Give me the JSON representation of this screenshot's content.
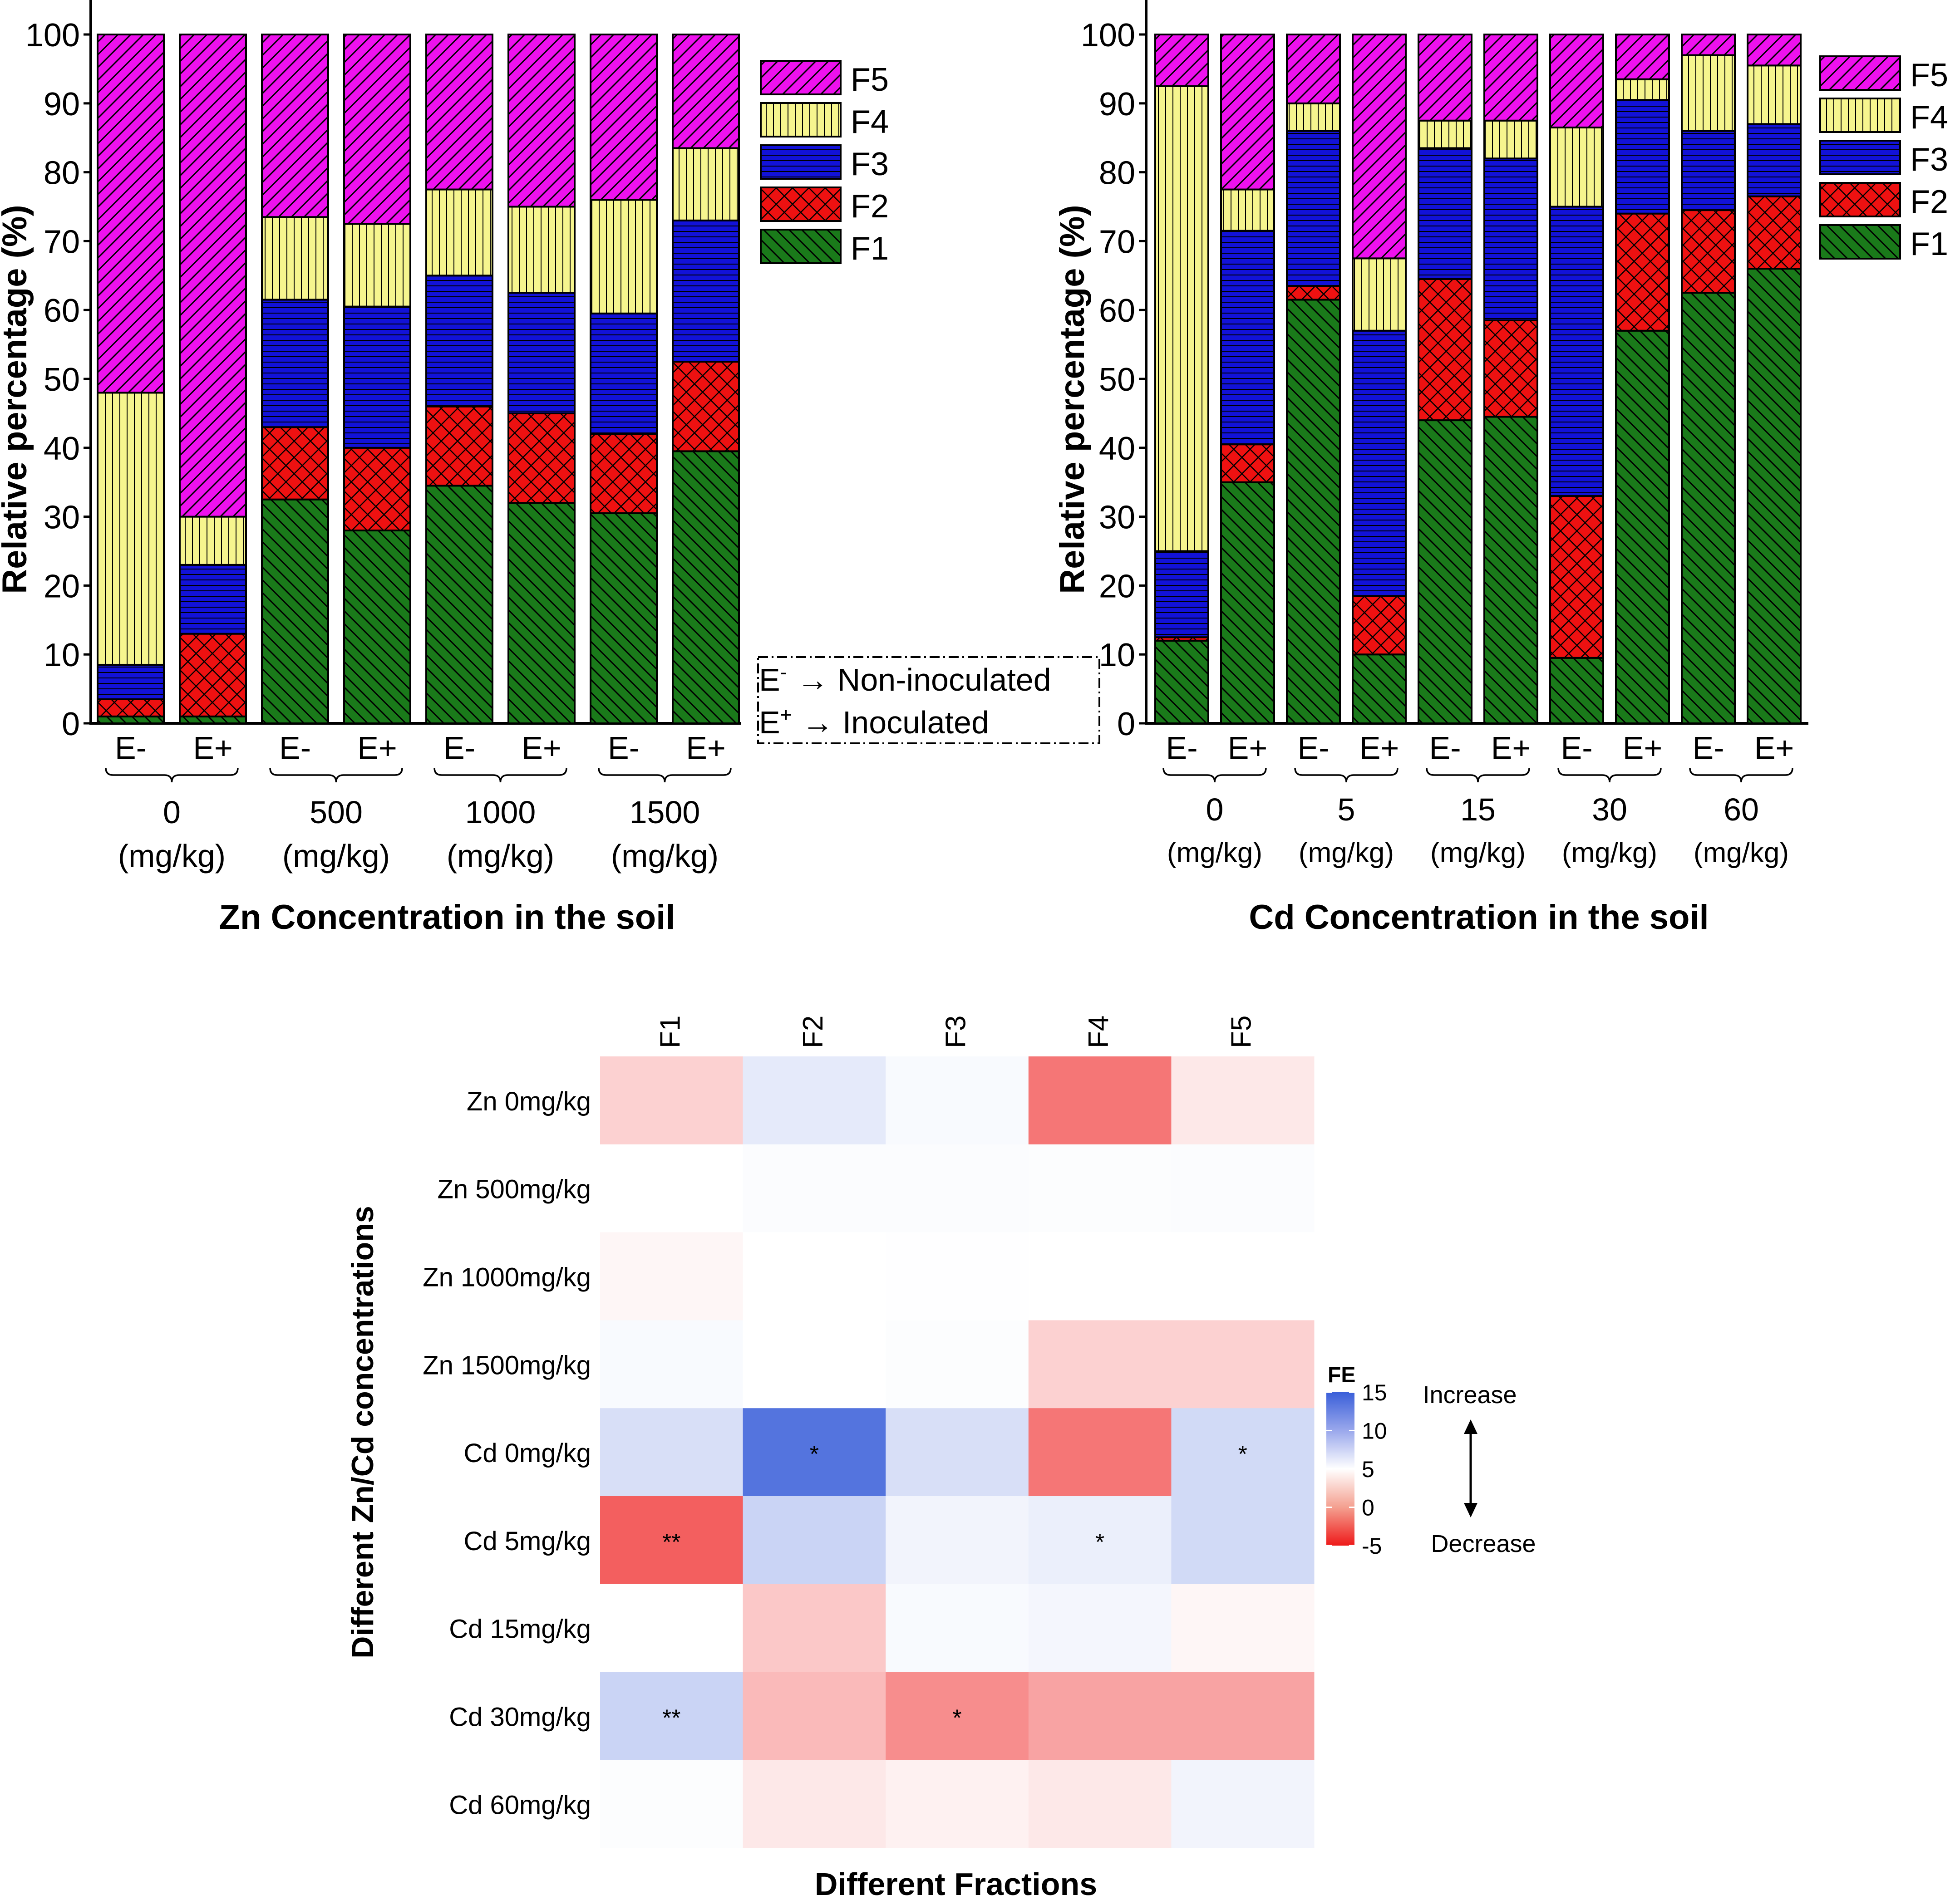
{
  "chart_data": [
    {
      "type": "bar",
      "stacked": true,
      "title": "",
      "xlabel": "Zn Concentration in the soil",
      "ylabel": "Relative percentage (%)",
      "ylim": [
        0,
        100
      ],
      "yticks": [
        0,
        10,
        20,
        30,
        40,
        50,
        60,
        70,
        80,
        90,
        100
      ],
      "bar_labels": [
        "E-",
        "E+",
        "E-",
        "E+",
        "E-",
        "E+",
        "E-",
        "E+"
      ],
      "groups": [
        {
          "value": "0",
          "unit": "(mg/kg)"
        },
        {
          "value": "500",
          "unit": "(mg/kg)"
        },
        {
          "value": "1000",
          "unit": "(mg/kg)"
        },
        {
          "value": "1500",
          "unit": "(mg/kg)"
        }
      ],
      "series": [
        {
          "name": "F1",
          "values": [
            1.0,
            1.0,
            32.5,
            28.0,
            34.5,
            32.0,
            30.5,
            39.5
          ]
        },
        {
          "name": "F2",
          "values": [
            2.5,
            12.0,
            10.5,
            12.0,
            11.5,
            13.0,
            11.5,
            13.0
          ]
        },
        {
          "name": "F3",
          "values": [
            5.0,
            10.0,
            18.5,
            20.5,
            19.0,
            17.5,
            17.5,
            20.5
          ]
        },
        {
          "name": "F4",
          "values": [
            39.5,
            7.0,
            12.0,
            12.0,
            12.5,
            12.5,
            16.5,
            10.5
          ]
        },
        {
          "name": "F5",
          "values": [
            52.0,
            70.0,
            26.5,
            27.5,
            22.5,
            25.0,
            24.0,
            16.5
          ]
        }
      ],
      "legend": {
        "position": "top-right",
        "entries": [
          "F5",
          "F4",
          "F3",
          "F2",
          "F1"
        ]
      },
      "note": {
        "lines": [
          [
            "E",
            "-",
            "→ Non-inoculated"
          ],
          [
            "E",
            "+",
            "→ Inoculated"
          ]
        ]
      }
    },
    {
      "type": "bar",
      "stacked": true,
      "title": "",
      "xlabel": "Cd Concentration in the soil",
      "ylabel": "Relative percentage (%)",
      "ylim": [
        0,
        100
      ],
      "yticks": [
        0,
        10,
        20,
        30,
        40,
        50,
        60,
        70,
        80,
        90,
        100
      ],
      "bar_labels": [
        "E-",
        "E+",
        "E-",
        "E+",
        "E-",
        "E+",
        "E-",
        "E+",
        "E-",
        "E+"
      ],
      "groups": [
        {
          "value": "0",
          "unit": "(mg/kg)"
        },
        {
          "value": "5",
          "unit": "(mg/kg)"
        },
        {
          "value": "15",
          "unit": "(mg/kg)"
        },
        {
          "value": "30",
          "unit": "(mg/kg)"
        },
        {
          "value": "60",
          "unit": "(mg/kg)"
        }
      ],
      "series": [
        {
          "name": "F1",
          "values": [
            12.0,
            35.0,
            61.5,
            10.0,
            44.0,
            44.5,
            9.5,
            57.0,
            62.5,
            66.0
          ]
        },
        {
          "name": "F2",
          "values": [
            0.5,
            5.5,
            2.0,
            8.5,
            20.5,
            14.0,
            23.5,
            17.0,
            12.0,
            10.5
          ]
        },
        {
          "name": "F3",
          "values": [
            12.5,
            31.0,
            22.5,
            38.5,
            19.0,
            23.5,
            42.0,
            16.5,
            11.5,
            10.5
          ]
        },
        {
          "name": "F4",
          "values": [
            67.5,
            6.0,
            4.0,
            10.5,
            4.0,
            5.5,
            11.5,
            3.0,
            11.0,
            8.5
          ]
        },
        {
          "name": "F5",
          "values": [
            7.5,
            22.5,
            10.0,
            32.5,
            12.5,
            12.5,
            13.5,
            6.5,
            3.0,
            4.5
          ]
        }
      ],
      "legend": {
        "position": "top-right",
        "entries": [
          "F5",
          "F4",
          "F3",
          "F2",
          "F1"
        ]
      }
    },
    {
      "type": "heatmap",
      "title": "",
      "xlabel": "Different Fractions",
      "ylabel": "Different Zn/Cd concentrations",
      "columns": [
        "F1",
        "F2",
        "F3",
        "F4",
        "F5"
      ],
      "rows": [
        "Zn 0mg/kg",
        "Zn 500mg/kg",
        "Zn 1000mg/kg",
        "Zn 1500mg/kg",
        "Cd 0mg/kg",
        "Cd 5mg/kg",
        "Cd 15mg/kg",
        "Cd 30mg/kg",
        "Cd 60mg/kg"
      ],
      "values": [
        [
          -1.0,
          2.0,
          0.5,
          -3.0,
          -0.5
        ],
        [
          0.0,
          0.3,
          0.3,
          0.2,
          0.3
        ],
        [
          -0.2,
          0.0,
          0.1,
          0.0,
          0.0
        ],
        [
          0.5,
          0.0,
          0.2,
          -1.0,
          -1.0
        ],
        [
          3.0,
          13.0,
          3.0,
          -3.0,
          3.5
        ],
        [
          -3.5,
          4.0,
          1.0,
          1.5,
          3.5
        ],
        [
          0.0,
          -1.2,
          0.5,
          0.8,
          -0.2
        ],
        [
          4.0,
          -1.5,
          -2.5,
          -2.0,
          -2.0
        ],
        [
          0.2,
          -0.5,
          -0.3,
          -0.5,
          1.0
        ]
      ],
      "annotations": [
        [
          "",
          "",
          "",
          "",
          ""
        ],
        [
          "",
          "",
          "",
          "",
          ""
        ],
        [
          "",
          "",
          "",
          "",
          ""
        ],
        [
          "",
          "",
          "",
          "",
          ""
        ],
        [
          "",
          "*",
          "",
          "",
          "*"
        ],
        [
          "**",
          "",
          "",
          "*",
          ""
        ],
        [
          "",
          "",
          "",
          "",
          ""
        ],
        [
          "**",
          "",
          "*",
          "",
          ""
        ],
        [
          "",
          "",
          "",
          "",
          ""
        ]
      ],
      "colorbar": {
        "title": "FE",
        "range": [
          -5,
          15
        ],
        "ticks": [
          15,
          10,
          5,
          0,
          -5
        ]
      },
      "arrow_labels": {
        "top": "Increase",
        "bottom": "Decrease"
      }
    }
  ]
}
